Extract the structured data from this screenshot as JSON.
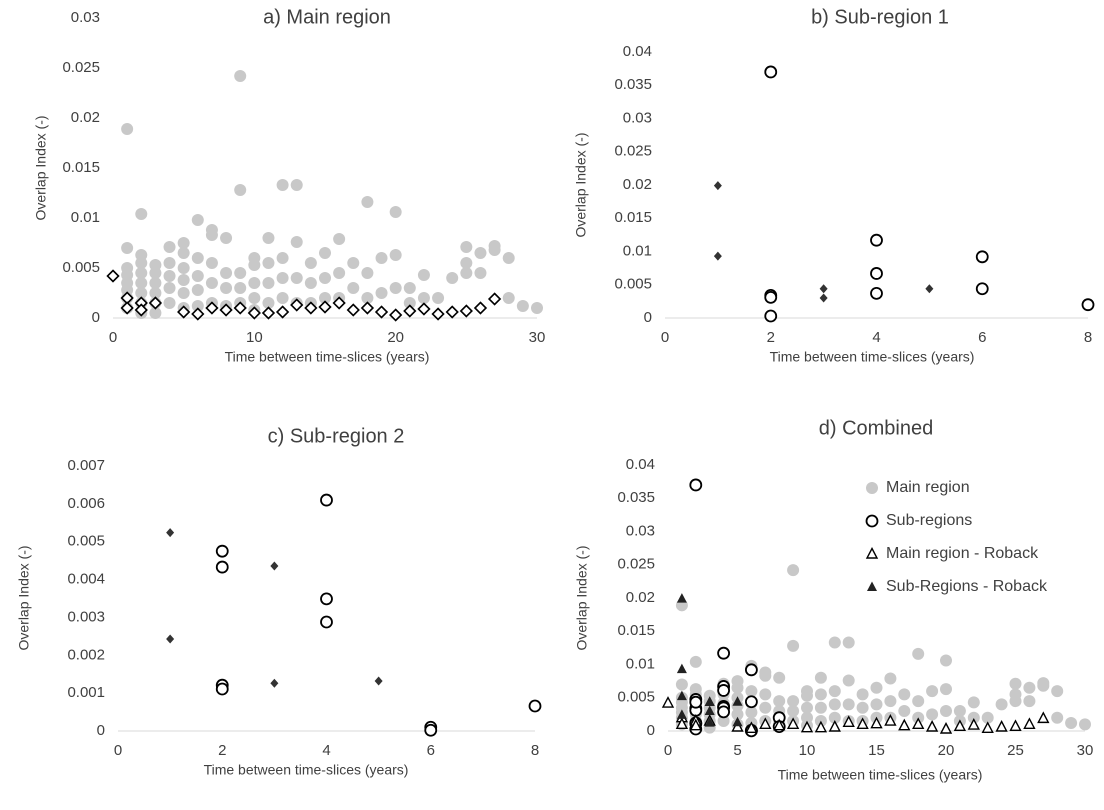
{
  "chart_data": [
    {
      "type": "scatter",
      "title": "a) Main region",
      "xlabel": "Time between time-slices (years)",
      "ylabel": "Overlap Index (-)",
      "xlim": [
        0,
        30
      ],
      "ylim": [
        0,
        0.03
      ],
      "xticks": [
        "0",
        "10",
        "20",
        "30"
      ],
      "yticks": [
        "0",
        "0.005",
        "0.01",
        "0.015",
        "0.02",
        "0.025",
        "0.03"
      ],
      "series": [
        {
          "marker": "filled-circle",
          "color": "#c8c8c8",
          "x": [
            1,
            1,
            1,
            1,
            1,
            1,
            1,
            1,
            2,
            2,
            2,
            2,
            2,
            2,
            2,
            2,
            3,
            3,
            3,
            3,
            3,
            3,
            4,
            4,
            4,
            4,
            4,
            5,
            5,
            5,
            5,
            5,
            5,
            6,
            6,
            6,
            6,
            6,
            7,
            7,
            7,
            7,
            7,
            8,
            8,
            8,
            8,
            9,
            9,
            9,
            9,
            9,
            10,
            10,
            10,
            10,
            10,
            11,
            11,
            11,
            11,
            12,
            12,
            12,
            12,
            13,
            13,
            13,
            13,
            14,
            14,
            14,
            15,
            15,
            15,
            16,
            16,
            16,
            17,
            17,
            18,
            18,
            18,
            19,
            19,
            20,
            20,
            20,
            21,
            21,
            22,
            22,
            23,
            24,
            25,
            25,
            25,
            26,
            26,
            27,
            27,
            28,
            28,
            29,
            30
          ],
          "y": [
            0.0189,
            0.007,
            0.005,
            0.0043,
            0.0035,
            0.0028,
            0.002,
            0.001,
            0.0104,
            0.0063,
            0.0055,
            0.0045,
            0.0035,
            0.0025,
            0.0015,
            0.0005,
            0.0053,
            0.0045,
            0.0035,
            0.0025,
            0.0015,
            0.0005,
            0.0071,
            0.0055,
            0.0042,
            0.003,
            0.0015,
            0.0075,
            0.0065,
            0.005,
            0.0038,
            0.0025,
            0.001,
            0.0098,
            0.006,
            0.0042,
            0.0028,
            0.0012,
            0.0088,
            0.0083,
            0.0055,
            0.0035,
            0.0015,
            0.008,
            0.0045,
            0.003,
            0.0012,
            0.0242,
            0.0128,
            0.0045,
            0.003,
            0.0015,
            0.006,
            0.0053,
            0.0035,
            0.002,
            0.0008,
            0.008,
            0.0055,
            0.0035,
            0.0015,
            0.0133,
            0.006,
            0.004,
            0.002,
            0.0133,
            0.0076,
            0.004,
            0.0015,
            0.0055,
            0.0035,
            0.0015,
            0.0065,
            0.004,
            0.002,
            0.0079,
            0.0045,
            0.002,
            0.0055,
            0.003,
            0.0116,
            0.0045,
            0.002,
            0.006,
            0.0025,
            0.0106,
            0.0063,
            0.003,
            0.003,
            0.0015,
            0.0043,
            0.002,
            0.002,
            0.004,
            0.0071,
            0.0055,
            0.0045,
            0.0065,
            0.0045,
            0.0072,
            0.0068,
            0.006,
            0.002,
            0.0012,
            0.001
          ]
        },
        {
          "marker": "open-diamond",
          "color": "#000000",
          "x": [
            0,
            1,
            1,
            2,
            2,
            3,
            5,
            6,
            7,
            8,
            9,
            10,
            11,
            12,
            13,
            14,
            15,
            16,
            17,
            18,
            19,
            20,
            21,
            22,
            23,
            24,
            25,
            26,
            27
          ],
          "y": [
            0.0042,
            0.002,
            0.001,
            0.0015,
            0.0008,
            0.0015,
            0.0006,
            0.0004,
            0.001,
            0.0008,
            0.001,
            0.0005,
            0.0005,
            0.0006,
            0.0013,
            0.001,
            0.0011,
            0.0015,
            0.0008,
            0.001,
            0.0006,
            0.0003,
            0.0007,
            0.0009,
            0.0004,
            0.0006,
            0.0007,
            0.001,
            0.0019
          ]
        }
      ]
    },
    {
      "type": "scatter",
      "title": "b) Sub-region 1",
      "xlabel": "Time between time-slices (years)",
      "ylabel": "Overlap Index (-)",
      "xlim": [
        0,
        8
      ],
      "ylim": [
        0,
        0.04
      ],
      "xticks": [
        "0",
        "2",
        "4",
        "6",
        "8"
      ],
      "yticks": [
        "0",
        "0.005",
        "0.01",
        "0.015",
        "0.02",
        "0.025",
        "0.03",
        "0.035",
        "0.04"
      ],
      "series": [
        {
          "marker": "open-circle",
          "color": "#000000",
          "x": [
            2,
            2,
            2,
            2,
            4,
            4,
            4,
            6,
            6,
            8
          ],
          "y": [
            0.037,
            0.0034,
            0.0031,
            0.0003,
            0.0117,
            0.0067,
            0.0037,
            0.0092,
            0.0044,
            0.002
          ]
        },
        {
          "marker": "filled-diamond",
          "color": "#333333",
          "x": [
            1,
            1,
            3,
            3,
            5
          ],
          "y": [
            0.0199,
            0.0093,
            0.0044,
            0.003,
            0.0044
          ]
        }
      ]
    },
    {
      "type": "scatter",
      "title": "c) Sub-region 2",
      "xlabel": "Time between time-slices (years)",
      "ylabel": "Overlap Index (-)",
      "xlim": [
        0,
        8
      ],
      "ylim": [
        0,
        0.007
      ],
      "xticks": [
        "0",
        "2",
        "4",
        "6",
        "8"
      ],
      "yticks": [
        "0",
        "0.001",
        "0.002",
        "0.003",
        "0.004",
        "0.005",
        "0.006",
        "0.007"
      ],
      "series": [
        {
          "marker": "open-circle",
          "color": "#000000",
          "x": [
            2,
            2,
            2,
            2,
            4,
            4,
            4,
            6,
            6,
            8
          ],
          "y": [
            0.00475,
            0.00433,
            0.00121,
            0.00111,
            0.0061,
            0.00349,
            0.00288,
            0.0001,
            2e-05,
            0.00066
          ]
        },
        {
          "marker": "filled-diamond",
          "color": "#333333",
          "x": [
            1,
            1,
            3,
            3,
            5
          ],
          "y": [
            0.00524,
            0.00243,
            0.00436,
            0.00126,
            0.00132
          ]
        }
      ]
    },
    {
      "type": "scatter",
      "title": "d) Combined",
      "xlabel": "Time between time-slices (years)",
      "ylabel": "Overlap Index (-)",
      "xlim": [
        0,
        30
      ],
      "ylim": [
        0,
        0.04
      ],
      "xticks": [
        "0",
        "5",
        "10",
        "15",
        "20",
        "25",
        "30"
      ],
      "yticks": [
        "0",
        "0.005",
        "0.01",
        "0.015",
        "0.02",
        "0.025",
        "0.03",
        "0.035",
        "0.04"
      ],
      "legend_position": "top-right",
      "series": [
        {
          "name": "Main region",
          "marker": "filled-circle",
          "color": "#c8c8c8",
          "x": [
            1,
            1,
            1,
            1,
            1,
            1,
            1,
            1,
            2,
            2,
            2,
            2,
            2,
            2,
            2,
            2,
            3,
            3,
            3,
            3,
            3,
            3,
            4,
            4,
            4,
            4,
            4,
            5,
            5,
            5,
            5,
            5,
            5,
            6,
            6,
            6,
            6,
            6,
            7,
            7,
            7,
            7,
            7,
            8,
            8,
            8,
            8,
            9,
            9,
            9,
            9,
            9,
            10,
            10,
            10,
            10,
            10,
            11,
            11,
            11,
            11,
            12,
            12,
            12,
            12,
            13,
            13,
            13,
            13,
            14,
            14,
            14,
            15,
            15,
            15,
            16,
            16,
            16,
            17,
            17,
            18,
            18,
            18,
            19,
            19,
            20,
            20,
            20,
            21,
            21,
            22,
            22,
            23,
            24,
            25,
            25,
            25,
            26,
            26,
            27,
            27,
            28,
            28,
            29,
            30
          ],
          "y": [
            0.0189,
            0.007,
            0.005,
            0.0043,
            0.0035,
            0.0028,
            0.002,
            0.001,
            0.0104,
            0.0063,
            0.0055,
            0.0045,
            0.0035,
            0.0025,
            0.0015,
            0.0005,
            0.0053,
            0.0045,
            0.0035,
            0.0025,
            0.0015,
            0.0005,
            0.0071,
            0.0055,
            0.0042,
            0.003,
            0.0015,
            0.0075,
            0.0065,
            0.005,
            0.0038,
            0.0025,
            0.001,
            0.0098,
            0.006,
            0.0042,
            0.0028,
            0.0012,
            0.0088,
            0.0083,
            0.0055,
            0.0035,
            0.0015,
            0.008,
            0.0045,
            0.003,
            0.0012,
            0.0242,
            0.0128,
            0.0045,
            0.003,
            0.0015,
            0.006,
            0.0053,
            0.0035,
            0.002,
            0.0008,
            0.008,
            0.0055,
            0.0035,
            0.0015,
            0.0133,
            0.006,
            0.004,
            0.002,
            0.0133,
            0.0076,
            0.004,
            0.0015,
            0.0055,
            0.0035,
            0.0015,
            0.0065,
            0.004,
            0.002,
            0.0079,
            0.0045,
            0.002,
            0.0055,
            0.003,
            0.0116,
            0.0045,
            0.002,
            0.006,
            0.0025,
            0.0106,
            0.0063,
            0.003,
            0.003,
            0.0015,
            0.0043,
            0.002,
            0.002,
            0.004,
            0.0071,
            0.0055,
            0.0045,
            0.0065,
            0.0045,
            0.0072,
            0.0068,
            0.006,
            0.002,
            0.0012,
            0.001
          ]
        },
        {
          "name": "Sub-regions",
          "marker": "open-circle",
          "color": "#000000",
          "x": [
            2,
            2,
            2,
            2,
            4,
            4,
            4,
            6,
            6,
            8,
            2,
            2,
            2,
            2,
            4,
            4,
            4,
            6,
            6,
            8
          ],
          "y": [
            0.037,
            0.0034,
            0.0031,
            0.0003,
            0.0117,
            0.0067,
            0.0037,
            0.0092,
            0.0044,
            0.002,
            0.00475,
            0.00433,
            0.00121,
            0.00111,
            0.0061,
            0.00349,
            0.00288,
            0.0001,
            2e-05,
            0.00066
          ]
        },
        {
          "name": "Main region - Roback",
          "marker": "open-triangle",
          "color": "#000000",
          "x": [
            0,
            1,
            1,
            2,
            2,
            3,
            5,
            6,
            7,
            8,
            9,
            10,
            11,
            12,
            13,
            14,
            15,
            16,
            17,
            18,
            19,
            20,
            21,
            22,
            23,
            24,
            25,
            26,
            27
          ],
          "y": [
            0.0042,
            0.002,
            0.001,
            0.0015,
            0.0008,
            0.0015,
            0.0006,
            0.0004,
            0.001,
            0.0008,
            0.001,
            0.0005,
            0.0005,
            0.0006,
            0.0013,
            0.001,
            0.0011,
            0.0015,
            0.0008,
            0.001,
            0.0006,
            0.0003,
            0.0007,
            0.0009,
            0.0004,
            0.0006,
            0.0007,
            0.001,
            0.0019
          ]
        },
        {
          "name": "Sub-Regions - Roback",
          "marker": "filled-triangle",
          "color": "#222222",
          "x": [
            1,
            1,
            3,
            3,
            5,
            1,
            1,
            3,
            3,
            5
          ],
          "y": [
            0.0199,
            0.0093,
            0.0044,
            0.003,
            0.0044,
            0.00524,
            0.00243,
            0.00436,
            0.00126,
            0.00132
          ]
        }
      ]
    }
  ]
}
